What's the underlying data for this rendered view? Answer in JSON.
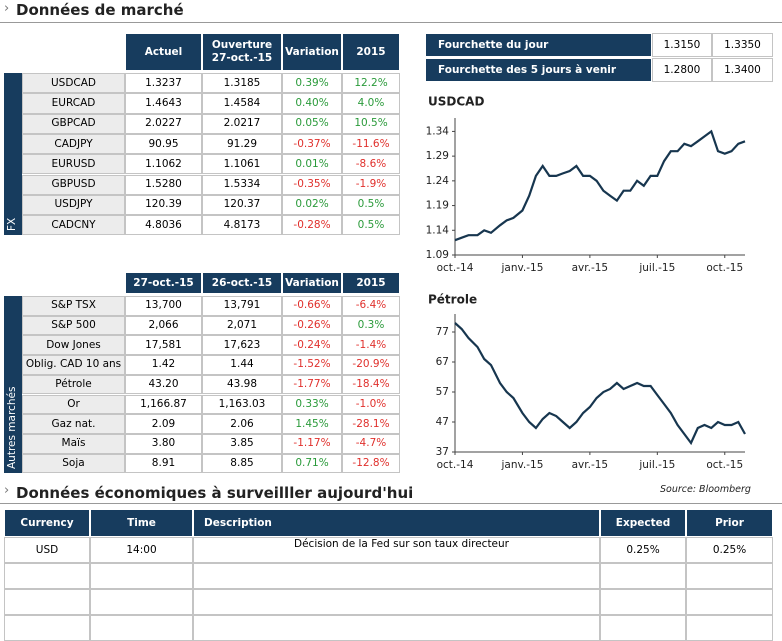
{
  "header": {
    "title": "Données de marché"
  },
  "fx_table": {
    "side_label": "FX",
    "columns": [
      [
        "Actuel"
      ],
      [
        "Ouverture",
        "27-oct.-15"
      ],
      [
        "Variation"
      ],
      [
        "2015"
      ]
    ],
    "rows": [
      [
        "USDCAD",
        "1.3237",
        "1.3185",
        "0.39%",
        "12.2%"
      ],
      [
        "EURCAD",
        "1.4643",
        "1.4584",
        "0.40%",
        "4.0%"
      ],
      [
        "GBPCAD",
        "2.0227",
        "2.0217",
        "0.05%",
        "10.5%"
      ],
      [
        "CADJPY",
        "90.95",
        "91.29",
        "-0.37%",
        "-11.6%"
      ],
      [
        "EURUSD",
        "1.1062",
        "1.1061",
        "0.01%",
        "-8.6%"
      ],
      [
        "GBPUSD",
        "1.5280",
        "1.5334",
        "-0.35%",
        "-1.9%"
      ],
      [
        "USDJPY",
        "120.39",
        "120.37",
        "0.02%",
        "0.5%"
      ],
      [
        "CADCNY",
        "4.8036",
        "4.8173",
        "-0.28%",
        "0.5%"
      ]
    ]
  },
  "markets_table": {
    "side_label": "Autres marchés",
    "columns": [
      [
        "27-oct.-15"
      ],
      [
        "26-oct.-15"
      ],
      [
        "Variation"
      ],
      [
        "2015"
      ]
    ],
    "rows": [
      [
        "S&P TSX",
        "13,700",
        "13,791",
        "-0.66%",
        "-6.4%"
      ],
      [
        "S&P 500",
        "2,066",
        "2,071",
        "-0.26%",
        "0.3%"
      ],
      [
        "Dow Jones",
        "17,581",
        "17,623",
        "-0.24%",
        "-1.4%"
      ],
      [
        "Oblig. CAD 10 ans",
        "1.42",
        "1.44",
        "-1.52%",
        "-20.9%"
      ],
      [
        "Pétrole",
        "43.20",
        "43.98",
        "-1.77%",
        "-18.4%"
      ],
      [
        "Or",
        "1,166.87",
        "1,163.03",
        "0.33%",
        "-1.0%"
      ],
      [
        "Gaz nat.",
        "2.09",
        "2.06",
        "1.45%",
        "-28.1%"
      ],
      [
        "Maïs",
        "3.80",
        "3.85",
        "-1.17%",
        "-4.7%"
      ],
      [
        "Soja",
        "8.91",
        "8.85",
        "0.71%",
        "-12.8%"
      ]
    ]
  },
  "ranges_table": {
    "rows": [
      [
        "Fourchette du  jour",
        "1.3150",
        "1.3350"
      ],
      [
        "Fourchette des 5 jours à venir",
        "1.2800",
        "1.3400"
      ]
    ]
  },
  "chart_data": [
    {
      "type": "line",
      "title": "USDCAD",
      "color": "#17364f",
      "x": [
        0,
        0.3,
        0.6,
        1.0,
        1.3,
        1.6,
        2.0,
        2.3,
        2.6,
        3.0,
        3.3,
        3.6,
        3.9,
        4.2,
        4.5,
        4.8,
        5.1,
        5.4,
        5.7,
        6.0,
        6.3,
        6.6,
        6.9,
        7.2,
        7.5,
        7.8,
        8.1,
        8.4,
        8.7,
        9.0,
        9.3,
        9.6,
        9.9,
        10.2,
        10.5,
        10.8,
        11.1,
        11.4,
        11.7,
        12.0,
        12.3,
        12.6,
        12.9
      ],
      "values": [
        1.12,
        1.125,
        1.13,
        1.13,
        1.14,
        1.135,
        1.15,
        1.16,
        1.165,
        1.18,
        1.21,
        1.25,
        1.27,
        1.25,
        1.25,
        1.255,
        1.26,
        1.27,
        1.25,
        1.25,
        1.24,
        1.22,
        1.21,
        1.2,
        1.22,
        1.22,
        1.24,
        1.23,
        1.25,
        1.25,
        1.28,
        1.3,
        1.3,
        1.315,
        1.31,
        1.32,
        1.33,
        1.34,
        1.3,
        1.295,
        1.3,
        1.315,
        1.32
      ],
      "xlim": [
        0,
        12.9
      ],
      "xticks": [
        {
          "value": 0,
          "label": "oct.-14"
        },
        {
          "value": 3,
          "label": "janv.-15"
        },
        {
          "value": 6,
          "label": "avr.-15"
        },
        {
          "value": 9,
          "label": "juil.-15"
        },
        {
          "value": 12,
          "label": "oct.-15"
        }
      ],
      "ylim": [
        1.09,
        1.355
      ],
      "yticks": [
        1.09,
        1.14,
        1.19,
        1.24,
        1.29,
        1.34
      ]
    },
    {
      "type": "line",
      "title": "Pétrole",
      "color": "#17364f",
      "x": [
        0,
        0.3,
        0.6,
        1.0,
        1.3,
        1.6,
        2.0,
        2.3,
        2.6,
        3.0,
        3.3,
        3.6,
        3.9,
        4.2,
        4.5,
        4.8,
        5.1,
        5.4,
        5.7,
        6.0,
        6.3,
        6.6,
        6.9,
        7.2,
        7.5,
        7.8,
        8.1,
        8.4,
        8.7,
        9.0,
        9.3,
        9.6,
        9.9,
        10.2,
        10.5,
        10.8,
        11.1,
        11.4,
        11.7,
        12.0,
        12.3,
        12.6,
        12.9
      ],
      "values": [
        80,
        78,
        75,
        72,
        68,
        66,
        60,
        57,
        55,
        50,
        47,
        45,
        48,
        50,
        49,
        47,
        45,
        47,
        50,
        52,
        55,
        57,
        58,
        60,
        58,
        59,
        60,
        59,
        59,
        56,
        53,
        50,
        46,
        43,
        40,
        45,
        46,
        45,
        47,
        46,
        46,
        47,
        43
      ],
      "xlim": [
        0,
        12.9
      ],
      "xticks": [
        {
          "value": 0,
          "label": "oct.-14"
        },
        {
          "value": 3,
          "label": "janv.-15"
        },
        {
          "value": 6,
          "label": "avr.-15"
        },
        {
          "value": 9,
          "label": "juil.-15"
        },
        {
          "value": 12,
          "label": "oct.-15"
        }
      ],
      "ylim": [
        37,
        81
      ],
      "yticks": [
        37,
        47,
        57,
        67,
        77
      ]
    }
  ],
  "source": "Source: Bloomberg",
  "econ": {
    "title": "Données économiques à surveilller aujourd'hui",
    "columns": [
      "Currency",
      "Time",
      "Description",
      "Expected",
      "Prior"
    ],
    "rows": [
      [
        "USD",
        "14:00",
        "Décision de la Fed sur son taux directeur",
        "0.25%",
        "0.25%"
      ]
    ]
  }
}
